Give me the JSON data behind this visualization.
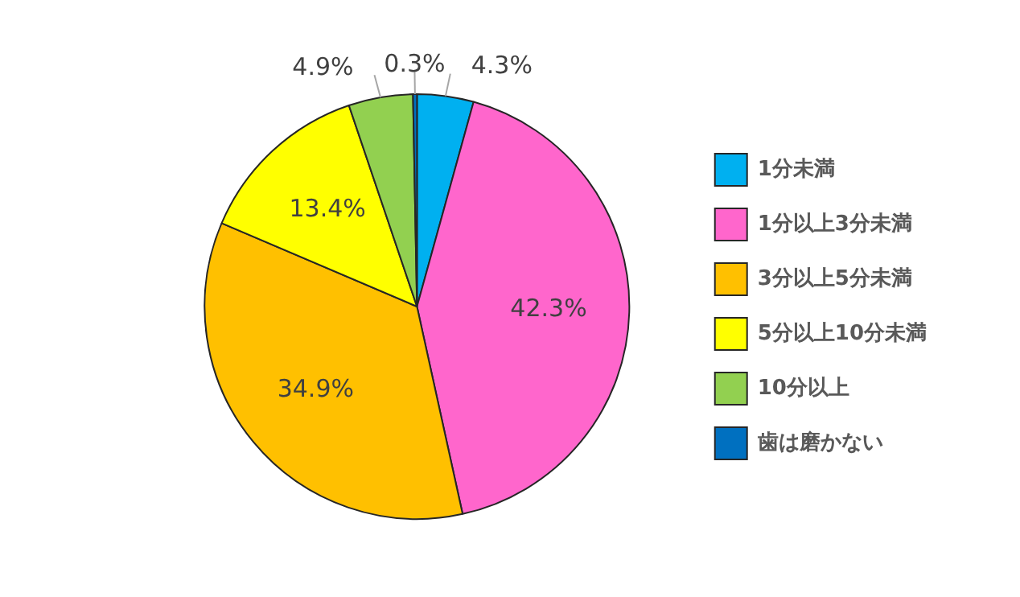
{
  "chart_data": {
    "type": "pie",
    "categories": [
      "1分未満",
      "1分以上3分未満",
      "3分以上5分未満",
      "5分以上10分未満",
      "10分以上",
      "歯は磨かない"
    ],
    "values": [
      4.3,
      42.3,
      34.9,
      13.4,
      4.9,
      0.3
    ],
    "colors": [
      "#00b0f0",
      "#ff66cc",
      "#ffc000",
      "#ffff00",
      "#92d050",
      "#0070c0"
    ],
    "value_labels": [
      "4.3%",
      "42.3%",
      "34.9%",
      "13.4%",
      "4.9%",
      "0.3%"
    ],
    "legend": "right"
  }
}
